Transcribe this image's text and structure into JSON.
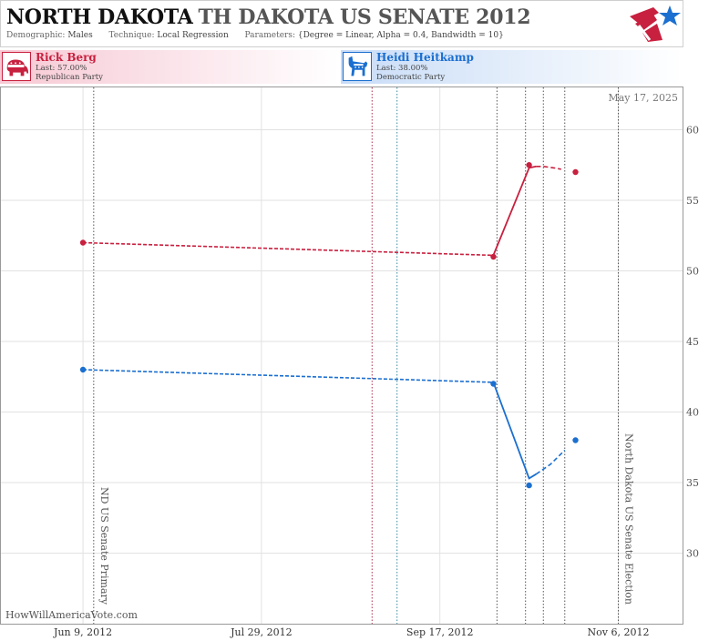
{
  "header": {
    "state": "NORTH DAKOTA",
    "race": "TH DAKOTA US SENATE 2012",
    "demographic_label": "Demographic:",
    "demographic": "Males",
    "technique_label": "Technique:",
    "technique": "Local Regression",
    "parameters_label": "Parameters:",
    "parameters": "{Degree = Linear, Alpha = 0.4, Bandwidth = 10}"
  },
  "candidates": [
    {
      "name": "Rick Berg",
      "last": "Last: 57.00%",
      "party": "Republican Party",
      "color": "#c8203f",
      "icon": "republican-elephant-icon"
    },
    {
      "name": "Heidi Heitkamp",
      "last": "Last: 38.00%",
      "party": "Democratic Party",
      "color": "#1b6fd0",
      "icon": "democratic-donkey-icon"
    }
  ],
  "chart_data": {
    "type": "line",
    "date_stamp": "May 17, 2025",
    "watermark": "HowWillAmericaVote.com",
    "x_ticks": [
      "Jun 9, 2012",
      "Jul 29, 2012",
      "Sep 17, 2012",
      "Nov 6, 2012"
    ],
    "y_ticks": [
      30,
      35,
      40,
      45,
      50,
      55,
      60
    ],
    "ylim": [
      25,
      63
    ],
    "xlim": [
      "2012-05-17",
      "2012-11-24"
    ],
    "grid": true,
    "events": [
      {
        "date": "2012-06-12",
        "label": "ND US Senate Primary"
      },
      {
        "date": "2012-11-06",
        "label": "North Dakota US Senate Election"
      }
    ],
    "poll_marker_dates": [
      {
        "date": "2012-08-29",
        "color": "#b03050"
      },
      {
        "date": "2012-09-05",
        "color": "#3a8aa0"
      },
      {
        "date": "2012-10-03",
        "color": "#555555"
      },
      {
        "date": "2012-10-11",
        "color": "#555555"
      },
      {
        "date": "2012-10-16",
        "color": "#555555"
      },
      {
        "date": "2012-10-22",
        "color": "#555555"
      }
    ],
    "series": [
      {
        "name": "Rick Berg",
        "color": "#c8203f",
        "points": [
          {
            "date": "2012-06-09",
            "value": 52.0
          },
          {
            "date": "2012-10-02",
            "value": 51.0
          },
          {
            "date": "2012-10-12",
            "value": 57.5
          },
          {
            "date": "2012-10-25",
            "value": 57.0
          }
        ],
        "trend_dashed": [
          {
            "date": "2012-06-09",
            "value": 52.0
          },
          {
            "date": "2012-10-02",
            "value": 51.1
          }
        ],
        "trend_solid": [
          {
            "date": "2012-10-02",
            "value": 51.1
          },
          {
            "date": "2012-10-12",
            "value": 57.3
          },
          {
            "date": "2012-10-14",
            "value": 57.4
          }
        ],
        "trend_tail_dashed": [
          {
            "date": "2012-10-14",
            "value": 57.4
          },
          {
            "date": "2012-10-16",
            "value": 57.4
          },
          {
            "date": "2012-10-19",
            "value": 57.3
          },
          {
            "date": "2012-10-21",
            "value": 57.2
          }
        ]
      },
      {
        "name": "Heidi Heitkamp",
        "color": "#1b6fd0",
        "points": [
          {
            "date": "2012-06-09",
            "value": 43.0
          },
          {
            "date": "2012-10-02",
            "value": 42.0
          },
          {
            "date": "2012-10-12",
            "value": 34.8
          },
          {
            "date": "2012-10-25",
            "value": 38.0
          }
        ],
        "trend_dashed": [
          {
            "date": "2012-06-09",
            "value": 43.0
          },
          {
            "date": "2012-10-02",
            "value": 42.1
          }
        ],
        "trend_solid": [
          {
            "date": "2012-10-02",
            "value": 42.1
          },
          {
            "date": "2012-10-12",
            "value": 35.3
          },
          {
            "date": "2012-10-14",
            "value": 35.6
          }
        ],
        "trend_tail_dashed": [
          {
            "date": "2012-10-14",
            "value": 35.6
          },
          {
            "date": "2012-10-18",
            "value": 36.3
          },
          {
            "date": "2012-10-22",
            "value": 37.3
          }
        ]
      }
    ]
  }
}
